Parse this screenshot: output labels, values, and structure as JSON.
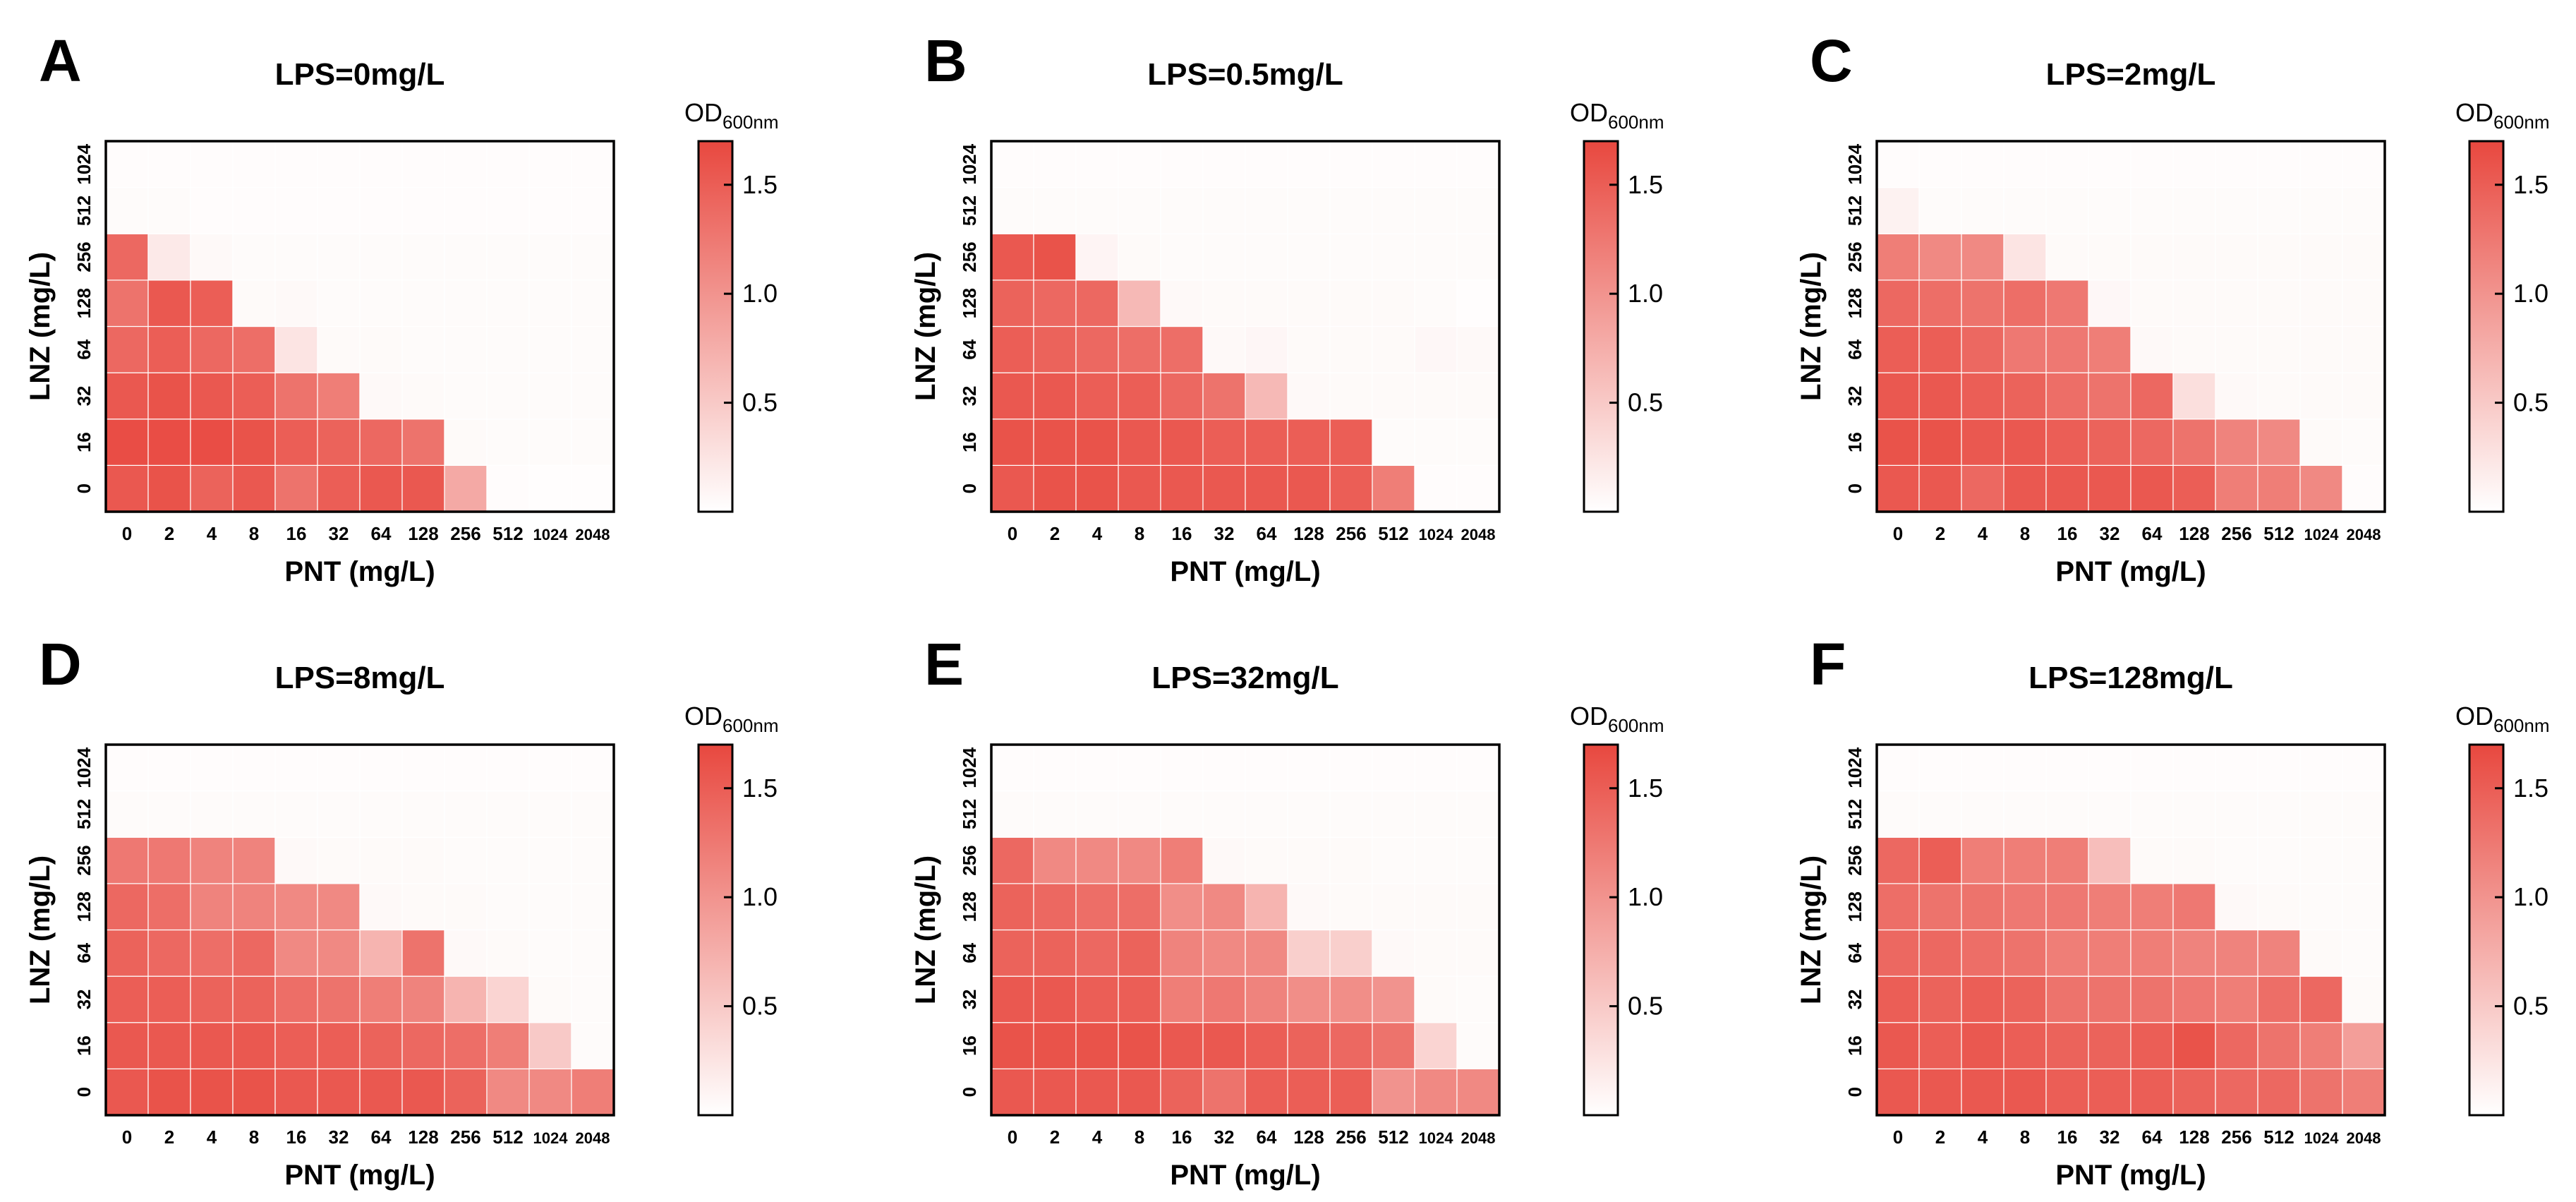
{
  "figure": {
    "colors": {
      "low": "#ffffff",
      "high": "#e8483f",
      "frame": "#000000"
    }
  },
  "chart_data": [
    {
      "type": "heatmap",
      "panel_label": "A",
      "title": "LPS=0mg/L",
      "xlabel": "PNT (mg/L)",
      "ylabel": "LNZ (mg/L)",
      "x_categories": [
        "0",
        "2",
        "4",
        "8",
        "16",
        "32",
        "64",
        "128",
        "256",
        "512",
        "1024",
        "2048"
      ],
      "y_categories": [
        "0",
        "16",
        "32",
        "64",
        "128",
        "256",
        "512",
        "1024"
      ],
      "colorbar": {
        "title": "OD",
        "subscript": "600nm",
        "ticks": [
          "0.5",
          "1.0",
          "1.5"
        ],
        "range": [
          0,
          1.7
        ]
      },
      "values": [
        [
          1.55,
          1.6,
          1.45,
          1.55,
          1.3,
          1.5,
          1.55,
          1.55,
          0.8,
          0.03,
          0.02,
          0.02
        ],
        [
          1.65,
          1.65,
          1.65,
          1.6,
          1.5,
          1.45,
          1.4,
          1.3,
          0.05,
          0.04,
          0.04,
          0.04
        ],
        [
          1.55,
          1.6,
          1.55,
          1.5,
          1.3,
          1.2,
          0.06,
          0.05,
          0.04,
          0.04,
          0.04,
          0.04
        ],
        [
          1.4,
          1.5,
          1.4,
          1.35,
          0.25,
          0.05,
          0.05,
          0.04,
          0.04,
          0.04,
          0.04,
          0.04
        ],
        [
          1.3,
          1.55,
          1.5,
          0.05,
          0.06,
          0.04,
          0.04,
          0.04,
          0.04,
          0.04,
          0.04,
          0.04
        ],
        [
          1.4,
          0.2,
          0.06,
          0.04,
          0.04,
          0.04,
          0.04,
          0.04,
          0.04,
          0.04,
          0.04,
          0.04
        ],
        [
          0.04,
          0.04,
          0.03,
          0.03,
          0.03,
          0.03,
          0.03,
          0.03,
          0.03,
          0.03,
          0.03,
          0.03
        ],
        [
          0.03,
          0.03,
          0.03,
          0.03,
          0.03,
          0.03,
          0.03,
          0.03,
          0.03,
          0.03,
          0.03,
          0.03
        ]
      ]
    },
    {
      "type": "heatmap",
      "panel_label": "B",
      "title": "LPS=0.5mg/L",
      "xlabel": "PNT (mg/L)",
      "ylabel": "LNZ (mg/L)",
      "x_categories": [
        "0",
        "2",
        "4",
        "8",
        "16",
        "32",
        "64",
        "128",
        "256",
        "512",
        "1024",
        "2048"
      ],
      "y_categories": [
        "0",
        "16",
        "32",
        "64",
        "128",
        "256",
        "512",
        "1024"
      ],
      "colorbar": {
        "title": "OD",
        "subscript": "600nm",
        "ticks": [
          "0.5",
          "1.0",
          "1.5"
        ],
        "range": [
          0,
          1.7
        ]
      },
      "values": [
        [
          1.55,
          1.6,
          1.6,
          1.55,
          1.55,
          1.55,
          1.55,
          1.55,
          1.5,
          1.2,
          0.03,
          0.03
        ],
        [
          1.6,
          1.6,
          1.6,
          1.55,
          1.55,
          1.5,
          1.5,
          1.5,
          1.5,
          0.04,
          0.04,
          0.04
        ],
        [
          1.55,
          1.55,
          1.5,
          1.5,
          1.4,
          1.3,
          0.65,
          0.06,
          0.05,
          0.05,
          0.05,
          0.05
        ],
        [
          1.5,
          1.45,
          1.4,
          1.35,
          1.35,
          0.06,
          0.08,
          0.05,
          0.05,
          0.05,
          0.07,
          0.06
        ],
        [
          1.45,
          1.4,
          1.4,
          0.65,
          0.06,
          0.05,
          0.05,
          0.05,
          0.05,
          0.05,
          0.04,
          0.02
        ],
        [
          1.55,
          1.6,
          0.1,
          0.05,
          0.04,
          0.04,
          0.04,
          0.04,
          0.04,
          0.04,
          0.04,
          0.04
        ],
        [
          0.04,
          0.04,
          0.04,
          0.04,
          0.04,
          0.04,
          0.04,
          0.04,
          0.04,
          0.04,
          0.04,
          0.04
        ],
        [
          0.03,
          0.03,
          0.03,
          0.03,
          0.03,
          0.03,
          0.03,
          0.03,
          0.03,
          0.03,
          0.03,
          0.03
        ]
      ]
    },
    {
      "type": "heatmap",
      "panel_label": "C",
      "title": "LPS=2mg/L",
      "xlabel": "PNT (mg/L)",
      "ylabel": "LNZ (mg/L)",
      "x_categories": [
        "0",
        "2",
        "4",
        "8",
        "16",
        "32",
        "64",
        "128",
        "256",
        "512",
        "1024",
        "2048"
      ],
      "y_categories": [
        "0",
        "16",
        "32",
        "64",
        "128",
        "256",
        "512",
        "1024"
      ],
      "colorbar": {
        "title": "OD",
        "subscript": "600nm",
        "ticks": [
          "0.5",
          "1.0",
          "1.5"
        ],
        "range": [
          0,
          1.7
        ]
      },
      "values": [
        [
          1.55,
          1.55,
          1.4,
          1.55,
          1.55,
          1.55,
          1.55,
          1.5,
          1.2,
          1.2,
          1.1,
          0.03
        ],
        [
          1.6,
          1.6,
          1.55,
          1.55,
          1.5,
          1.45,
          1.4,
          1.3,
          1.15,
          1.1,
          0.05,
          0.04
        ],
        [
          1.55,
          1.55,
          1.5,
          1.45,
          1.35,
          1.3,
          1.4,
          0.3,
          0.06,
          0.05,
          0.05,
          0.05
        ],
        [
          1.5,
          1.5,
          1.4,
          1.25,
          1.25,
          1.2,
          0.06,
          0.05,
          0.05,
          0.05,
          0.05,
          0.05
        ],
        [
          1.4,
          1.35,
          1.3,
          1.35,
          1.25,
          0.07,
          0.05,
          0.05,
          0.05,
          0.05,
          0.05,
          0.05
        ],
        [
          1.2,
          1.1,
          1.1,
          0.25,
          0.05,
          0.05,
          0.05,
          0.05,
          0.05,
          0.05,
          0.05,
          0.05
        ],
        [
          0.12,
          0.04,
          0.04,
          0.04,
          0.04,
          0.04,
          0.04,
          0.04,
          0.04,
          0.04,
          0.04,
          0.04
        ],
        [
          0.03,
          0.03,
          0.03,
          0.03,
          0.03,
          0.03,
          0.03,
          0.03,
          0.03,
          0.03,
          0.03,
          0.03
        ]
      ]
    },
    {
      "type": "heatmap",
      "panel_label": "D",
      "title": "LPS=8mg/L",
      "xlabel": "PNT (mg/L)",
      "ylabel": "LNZ (mg/L)",
      "x_categories": [
        "0",
        "2",
        "4",
        "8",
        "16",
        "32",
        "64",
        "128",
        "256",
        "512",
        "1024",
        "2048"
      ],
      "y_categories": [
        "0",
        "16",
        "32",
        "64",
        "128",
        "256",
        "512",
        "1024"
      ],
      "colorbar": {
        "title": "OD",
        "subscript": "600nm",
        "ticks": [
          "0.5",
          "1.0",
          "1.5"
        ],
        "range": [
          0,
          1.7
        ]
      },
      "values": [
        [
          1.55,
          1.6,
          1.6,
          1.6,
          1.55,
          1.55,
          1.55,
          1.55,
          1.45,
          1.1,
          1.1,
          1.2
        ],
        [
          1.55,
          1.55,
          1.55,
          1.55,
          1.5,
          1.5,
          1.45,
          1.4,
          1.35,
          1.2,
          0.5,
          0.04
        ],
        [
          1.5,
          1.5,
          1.45,
          1.45,
          1.35,
          1.3,
          1.2,
          1.15,
          0.7,
          0.4,
          0.05,
          0.04
        ],
        [
          1.45,
          1.4,
          1.35,
          1.4,
          1.1,
          1.1,
          0.7,
          1.3,
          0.06,
          0.05,
          0.04,
          0.04
        ],
        [
          1.4,
          1.35,
          1.15,
          1.15,
          1.1,
          1.1,
          0.06,
          0.05,
          0.05,
          0.04,
          0.04,
          0.04
        ],
        [
          1.25,
          1.25,
          1.15,
          1.15,
          0.06,
          0.05,
          0.05,
          0.05,
          0.04,
          0.04,
          0.04,
          0.04
        ],
        [
          0.04,
          0.04,
          0.04,
          0.04,
          0.04,
          0.04,
          0.04,
          0.04,
          0.04,
          0.04,
          0.04,
          0.04
        ],
        [
          0.03,
          0.03,
          0.03,
          0.03,
          0.03,
          0.03,
          0.03,
          0.03,
          0.03,
          0.03,
          0.03,
          0.03
        ]
      ]
    },
    {
      "type": "heatmap",
      "panel_label": "E",
      "title": "LPS=32mg/L",
      "xlabel": "PNT (mg/L)",
      "ylabel": "LNZ (mg/L)",
      "x_categories": [
        "0",
        "2",
        "4",
        "8",
        "16",
        "32",
        "64",
        "128",
        "256",
        "512",
        "1024",
        "2048"
      ],
      "y_categories": [
        "0",
        "16",
        "32",
        "64",
        "128",
        "256",
        "512",
        "1024"
      ],
      "colorbar": {
        "title": "OD",
        "subscript": "600nm",
        "ticks": [
          "0.5",
          "1.0",
          "1.5"
        ],
        "range": [
          0,
          1.7
        ]
      },
      "values": [
        [
          1.55,
          1.55,
          1.55,
          1.55,
          1.45,
          1.3,
          1.5,
          1.5,
          1.5,
          1.0,
          1.1,
          1.1
        ],
        [
          1.6,
          1.6,
          1.6,
          1.6,
          1.55,
          1.55,
          1.5,
          1.45,
          1.4,
          1.3,
          0.4,
          0.04
        ],
        [
          1.55,
          1.55,
          1.5,
          1.5,
          1.2,
          1.25,
          1.15,
          1.05,
          1.05,
          1.0,
          0.05,
          0.04
        ],
        [
          1.45,
          1.45,
          1.4,
          1.45,
          1.15,
          1.1,
          1.1,
          0.45,
          0.45,
          0.06,
          0.05,
          0.05
        ],
        [
          1.45,
          1.4,
          1.35,
          1.35,
          1.05,
          1.1,
          0.7,
          0.06,
          0.05,
          0.05,
          0.05,
          0.05
        ],
        [
          1.4,
          1.1,
          1.1,
          1.1,
          1.2,
          0.06,
          0.05,
          0.05,
          0.05,
          0.04,
          0.04,
          0.04
        ],
        [
          0.04,
          0.04,
          0.04,
          0.04,
          0.04,
          0.04,
          0.04,
          0.04,
          0.04,
          0.04,
          0.04,
          0.04
        ],
        [
          0.03,
          0.03,
          0.03,
          0.03,
          0.03,
          0.03,
          0.03,
          0.03,
          0.03,
          0.03,
          0.03,
          0.03
        ]
      ]
    },
    {
      "type": "heatmap",
      "panel_label": "F",
      "title": "LPS=128mg/L",
      "xlabel": "PNT (mg/L)",
      "ylabel": "LNZ (mg/L)",
      "x_categories": [
        "0",
        "2",
        "4",
        "8",
        "16",
        "32",
        "64",
        "128",
        "256",
        "512",
        "1024",
        "2048"
      ],
      "y_categories": [
        "0",
        "16",
        "32",
        "64",
        "128",
        "256",
        "512",
        "1024"
      ],
      "colorbar": {
        "title": "OD",
        "subscript": "600nm",
        "ticks": [
          "0.5",
          "1.0",
          "1.5"
        ],
        "range": [
          0,
          1.7
        ]
      },
      "values": [
        [
          1.55,
          1.55,
          1.55,
          1.55,
          1.5,
          1.5,
          1.5,
          1.45,
          1.4,
          1.4,
          1.3,
          1.2
        ],
        [
          1.55,
          1.5,
          1.55,
          1.5,
          1.45,
          1.45,
          1.5,
          1.6,
          1.4,
          1.3,
          1.2,
          0.9
        ],
        [
          1.5,
          1.45,
          1.5,
          1.45,
          1.3,
          1.3,
          1.3,
          1.25,
          1.2,
          1.35,
          1.4,
          0.05
        ],
        [
          1.4,
          1.4,
          1.35,
          1.3,
          1.2,
          1.2,
          1.2,
          1.15,
          1.15,
          1.15,
          0.05,
          0.04
        ],
        [
          1.35,
          1.3,
          1.3,
          1.25,
          1.25,
          1.2,
          1.2,
          1.25,
          0.06,
          0.05,
          0.04,
          0.04
        ],
        [
          1.4,
          1.5,
          1.2,
          1.2,
          1.2,
          0.6,
          0.05,
          0.05,
          0.04,
          0.04,
          0.04,
          0.04
        ],
        [
          0.04,
          0.04,
          0.04,
          0.04,
          0.04,
          0.04,
          0.04,
          0.04,
          0.04,
          0.04,
          0.04,
          0.04
        ],
        [
          0.03,
          0.03,
          0.03,
          0.03,
          0.03,
          0.03,
          0.03,
          0.03,
          0.03,
          0.03,
          0.03,
          0.03
        ]
      ]
    }
  ]
}
